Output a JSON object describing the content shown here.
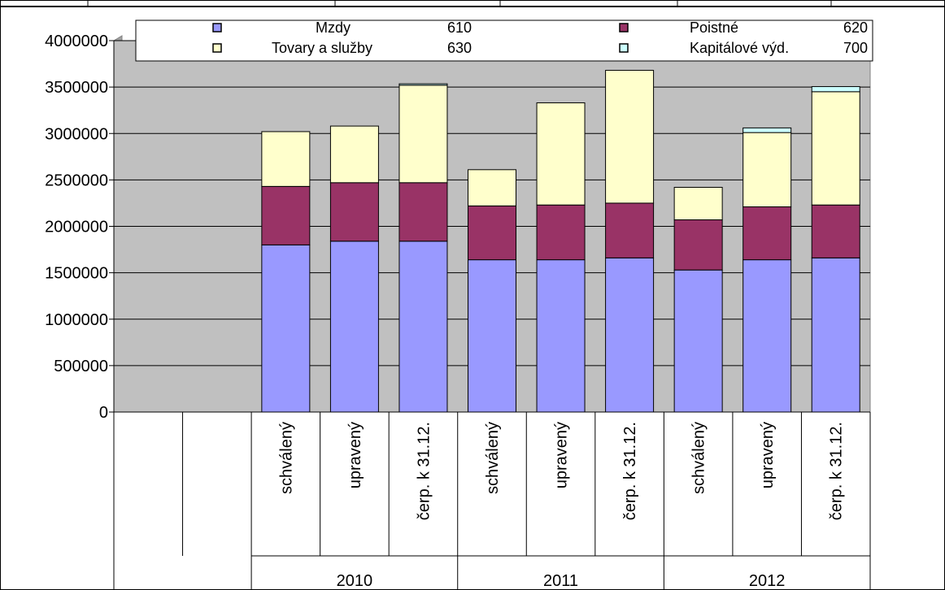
{
  "chart_data": {
    "type": "bar",
    "stacked": true,
    "title": "",
    "xlabel": "",
    "ylabel": "",
    "ylim": [
      0,
      4000000
    ],
    "y_ticks": [
      0,
      500000,
      1000000,
      1500000,
      2000000,
      2500000,
      3000000,
      3500000,
      4000000
    ],
    "grid": true,
    "legend_position": "top",
    "categories": [
      "",
      "",
      "schválený",
      "upravený",
      "čerp. k 31.12.",
      "schválený",
      "upravený",
      "čerp. k 31.12.",
      "schválený",
      "upravený",
      "čerp. k 31.12."
    ],
    "groups": [
      {
        "label": "2010",
        "span": [
          2,
          4
        ]
      },
      {
        "label": "2011",
        "span": [
          5,
          7
        ]
      },
      {
        "label": "2012",
        "span": [
          8,
          10
        ]
      }
    ],
    "series": [
      {
        "name": "Mzdy",
        "code": "610",
        "color": "#9999ff",
        "values": [
          null,
          null,
          1800000,
          1840000,
          1840000,
          1640000,
          1640000,
          1660000,
          1530000,
          1640000,
          1660000
        ]
      },
      {
        "name": "Poistné",
        "code": "620",
        "color": "#993366",
        "values": [
          null,
          null,
          630000,
          630000,
          630000,
          580000,
          590000,
          590000,
          540000,
          570000,
          570000
        ]
      },
      {
        "name": "Tovary a služby",
        "code": "630",
        "color": "#ffffcc",
        "values": [
          null,
          null,
          590000,
          610000,
          1050000,
          390000,
          1100000,
          1430000,
          350000,
          800000,
          1220000
        ]
      },
      {
        "name": "Kapitálové výd.",
        "code": "700",
        "color": "#ccffff",
        "values": [
          null,
          null,
          0,
          0,
          15000,
          0,
          0,
          0,
          0,
          50000,
          55000
        ]
      }
    ]
  }
}
